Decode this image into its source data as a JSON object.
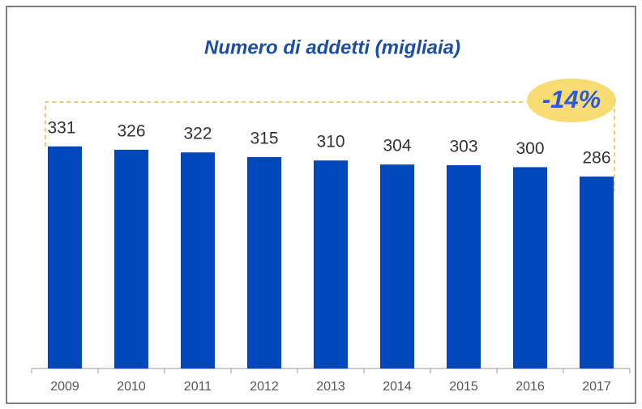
{
  "chart_data": {
    "type": "bar",
    "title": "Numero di addetti (migliaia)",
    "categories": [
      "2009",
      "2010",
      "2011",
      "2012",
      "2013",
      "2014",
      "2015",
      "2016",
      "2017"
    ],
    "values": [
      331,
      326,
      322,
      315,
      310,
      304,
      303,
      300,
      286
    ],
    "color": "#0047bb",
    "ylim": [
      0,
      350
    ],
    "annotation": "-14%"
  }
}
